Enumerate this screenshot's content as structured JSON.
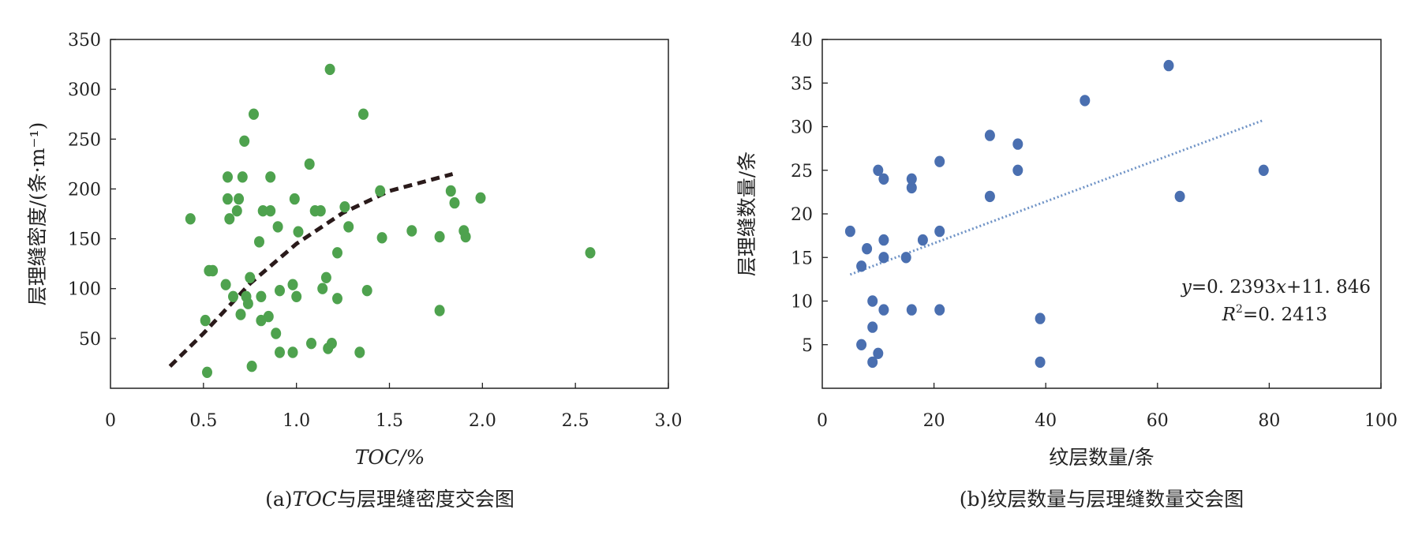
{
  "chart_data": [
    {
      "type": "scatter",
      "caption_prefix": "(a)",
      "caption_italic": "TOC",
      "caption_rest": "与层理缝密度交会图",
      "xlabel": "TOC/%",
      "ylabel": "层理缝密度/(条·m⁻¹)",
      "xlim": [
        0,
        3.0
      ],
      "ylim": [
        0,
        350
      ],
      "xticks": [
        "0",
        "0.5",
        "1.0",
        "1.5",
        "2.0",
        "2.5",
        "3.0"
      ],
      "yticks": [
        "50",
        "100",
        "150",
        "200",
        "250",
        "300",
        "350"
      ],
      "grid": false,
      "marker_color": "#4ea24e",
      "trend_color": "#2a1a1a",
      "trend_style": "dashed",
      "points": [
        [
          0.43,
          170
        ],
        [
          0.51,
          68
        ],
        [
          0.52,
          16
        ],
        [
          0.53,
          118
        ],
        [
          0.55,
          118
        ],
        [
          0.62,
          104
        ],
        [
          0.63,
          190
        ],
        [
          0.63,
          212
        ],
        [
          0.64,
          170
        ],
        [
          0.66,
          92
        ],
        [
          0.68,
          178
        ],
        [
          0.69,
          190
        ],
        [
          0.7,
          74
        ],
        [
          0.71,
          212
        ],
        [
          0.72,
          248
        ],
        [
          0.73,
          92
        ],
        [
          0.74,
          85
        ],
        [
          0.75,
          111
        ],
        [
          0.76,
          22
        ],
        [
          0.77,
          275
        ],
        [
          0.8,
          147
        ],
        [
          0.81,
          68
        ],
        [
          0.81,
          92
        ],
        [
          0.82,
          178
        ],
        [
          0.85,
          72
        ],
        [
          0.86,
          178
        ],
        [
          0.86,
          212
        ],
        [
          0.89,
          55
        ],
        [
          0.9,
          162
        ],
        [
          0.91,
          98
        ],
        [
          0.91,
          36
        ],
        [
          0.98,
          36
        ],
        [
          0.98,
          104
        ],
        [
          0.99,
          190
        ],
        [
          1.0,
          92
        ],
        [
          1.01,
          157
        ],
        [
          1.07,
          225
        ],
        [
          1.08,
          45
        ],
        [
          1.1,
          178
        ],
        [
          1.13,
          178
        ],
        [
          1.14,
          100
        ],
        [
          1.16,
          111
        ],
        [
          1.17,
          40
        ],
        [
          1.18,
          320
        ],
        [
          1.19,
          45
        ],
        [
          1.22,
          136
        ],
        [
          1.22,
          90
        ],
        [
          1.26,
          182
        ],
        [
          1.28,
          162
        ],
        [
          1.34,
          36
        ],
        [
          1.36,
          275
        ],
        [
          1.38,
          98
        ],
        [
          1.45,
          198
        ],
        [
          1.46,
          151
        ],
        [
          1.62,
          158
        ],
        [
          1.77,
          152
        ],
        [
          1.77,
          78
        ],
        [
          1.83,
          198
        ],
        [
          1.85,
          186
        ],
        [
          1.9,
          158
        ],
        [
          1.91,
          152
        ],
        [
          1.99,
          191
        ],
        [
          2.58,
          136
        ]
      ],
      "trend": [
        [
          0.32,
          22
        ],
        [
          0.5,
          55
        ],
        [
          0.75,
          105
        ],
        [
          1.0,
          145
        ],
        [
          1.25,
          176
        ],
        [
          1.5,
          198
        ],
        [
          1.84,
          215
        ]
      ]
    },
    {
      "type": "scatter",
      "caption": "(b)纹层数量与层理缝数量交会图",
      "xlabel": "纹层数量/条",
      "ylabel": "层理缝数量/条",
      "xlim": [
        0,
        100
      ],
      "ylim": [
        0,
        40
      ],
      "xticks": [
        "0",
        "20",
        "40",
        "60",
        "80",
        "100"
      ],
      "yticks": [
        "5",
        "10",
        "15",
        "20",
        "25",
        "30",
        "35",
        "40"
      ],
      "grid": false,
      "marker_color": "#4a6fb0",
      "trend_color": "#6f93c6",
      "trend_style": "dotted",
      "equation_y": "y",
      "equation_rest": "=0. 2393",
      "equation_x": "x",
      "equation_tail": "+11. 846",
      "r2_label": "R",
      "r2_sup": "2",
      "r2_value": "=0. 2413",
      "points": [
        [
          5,
          18
        ],
        [
          7,
          5
        ],
        [
          7,
          14
        ],
        [
          8,
          16
        ],
        [
          9,
          3
        ],
        [
          9,
          7
        ],
        [
          9,
          10
        ],
        [
          10,
          4
        ],
        [
          10,
          25
        ],
        [
          11,
          9
        ],
        [
          11,
          15
        ],
        [
          11,
          17
        ],
        [
          11,
          24
        ],
        [
          15,
          15
        ],
        [
          16,
          9
        ],
        [
          16,
          23
        ],
        [
          16,
          24
        ],
        [
          18,
          17
        ],
        [
          21,
          9
        ],
        [
          21,
          18
        ],
        [
          21,
          26
        ],
        [
          30,
          22
        ],
        [
          30,
          29
        ],
        [
          35,
          25
        ],
        [
          35,
          28
        ],
        [
          39,
          3
        ],
        [
          39,
          8
        ],
        [
          47,
          33
        ],
        [
          62,
          37
        ],
        [
          64,
          22
        ],
        [
          79,
          25
        ]
      ],
      "trend": [
        [
          5,
          13.04
        ],
        [
          79,
          30.75
        ]
      ]
    }
  ]
}
